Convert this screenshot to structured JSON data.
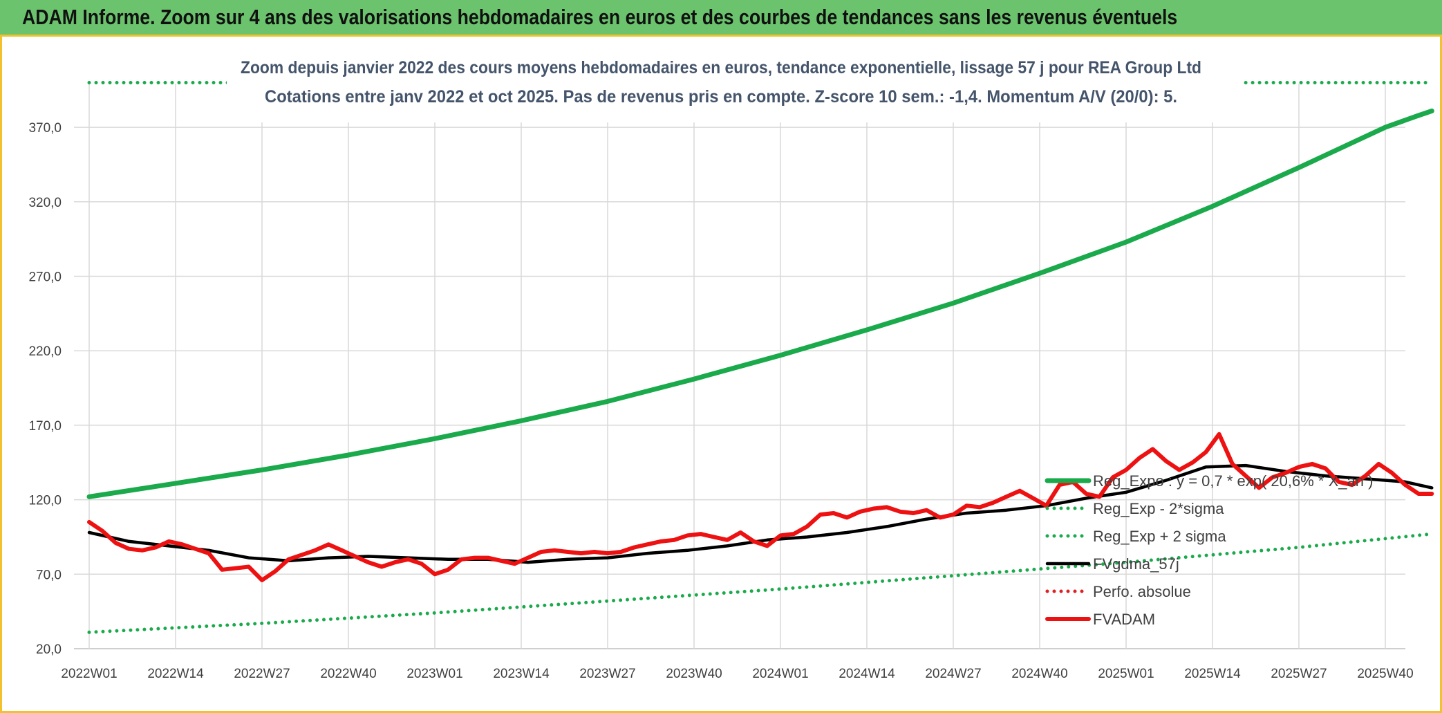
{
  "header": {
    "title": "ADAM Informe. Zoom sur 4 ans des valorisations hebdomadaires en euros et des courbes de tendances sans les revenus éventuels"
  },
  "colors": {
    "header_bg": "#6bc46d",
    "frame_border": "#f2c12e",
    "reg_expo": "#1aaa4b",
    "sigma_bands": "#1aaa4b",
    "fvgdma": "#000000",
    "perfo": "#e02020",
    "fvadam": "#ee1111"
  },
  "chart_data": {
    "type": "line",
    "title": "Zoom depuis janvier 2022 des cours moyens hebdomadaires en euros, tendance exponentielle, lissage 57 j pour REA Group Ltd",
    "subtitle": "Cotations entre janv 2022 et oct 2025. Pas de revenus pris en compte. Z-score 10 sem.: -1,4. Momentum A/V (20/0): 5.",
    "xlabel": "",
    "ylabel": "",
    "ylim": [
      20,
      380
    ],
    "grid": true,
    "legend_position": "right",
    "y_ticks": [
      "20,0",
      "70,0",
      "120,0",
      "170,0",
      "220,0",
      "270,0",
      "320,0",
      "370,0"
    ],
    "x_ticks": [
      "2022W01",
      "2022W14",
      "2022W27",
      "2022W40",
      "2023W01",
      "2023W14",
      "2023W27",
      "2023W40",
      "2024W01",
      "2024W14",
      "2024W27",
      "2024W40",
      "2025W01",
      "2025W14",
      "2025W27",
      "2025W40"
    ],
    "x_range_weeks": [
      0,
      202
    ],
    "series": [
      {
        "name": "Reg_Expo : y = 0,7 * exp( 20,6% * X_an )",
        "style": "solid-thick",
        "color": "#1aaa4b",
        "x": [
          0,
          13,
          26,
          39,
          52,
          65,
          78,
          91,
          104,
          117,
          130,
          143,
          156,
          169,
          182,
          195,
          200,
          202
        ],
        "values": [
          122,
          131,
          140,
          150,
          161,
          173,
          186,
          201,
          217,
          234,
          252,
          272,
          293,
          317,
          343,
          370,
          378,
          381
        ]
      },
      {
        "name": "Reg_Exp - 2*sigma",
        "style": "dotted",
        "color": "#1aaa4b",
        "x": [
          0,
          26,
          52,
          78,
          104,
          130,
          156,
          182,
          202
        ],
        "values": [
          31,
          37,
          44,
          52,
          60,
          69,
          78,
          88,
          97
        ]
      },
      {
        "name": "Reg_Exp + 2 sigma",
        "style": "dotted",
        "color": "#1aaa4b",
        "x": [
          0,
          23,
          155,
          174,
          202
        ],
        "values": [
          400,
          400,
          null,
          400,
          400
        ]
      },
      {
        "name": "FVgdma_57j",
        "style": "solid",
        "color": "#000000",
        "x": [
          0,
          6,
          12,
          18,
          24,
          30,
          36,
          42,
          48,
          54,
          60,
          66,
          72,
          78,
          84,
          90,
          96,
          102,
          108,
          114,
          120,
          126,
          132,
          138,
          144,
          150,
          156,
          162,
          168,
          174,
          180,
          186,
          192,
          198,
          202
        ],
        "values": [
          98,
          92,
          89,
          86,
          81,
          79,
          81,
          82,
          81,
          80,
          80,
          78,
          80,
          81,
          84,
          86,
          89,
          93,
          95,
          98,
          102,
          107,
          111,
          113,
          116,
          121,
          125,
          133,
          142,
          143,
          139,
          136,
          134,
          132,
          128
        ]
      },
      {
        "name": "Perfo. absolue",
        "style": "dotted",
        "color": "#e02020",
        "x": [],
        "values": []
      },
      {
        "name": "FVADAM",
        "style": "solid-thick",
        "color": "#ee1111",
        "x": [
          0,
          2,
          4,
          6,
          8,
          10,
          12,
          14,
          16,
          18,
          20,
          22,
          24,
          26,
          28,
          30,
          32,
          34,
          36,
          38,
          40,
          42,
          44,
          46,
          48,
          50,
          52,
          54,
          56,
          58,
          60,
          62,
          64,
          66,
          68,
          70,
          72,
          74,
          76,
          78,
          80,
          82,
          84,
          86,
          88,
          90,
          92,
          94,
          96,
          98,
          100,
          102,
          104,
          106,
          108,
          110,
          112,
          114,
          116,
          118,
          120,
          122,
          124,
          126,
          128,
          130,
          132,
          134,
          136,
          138,
          140,
          142,
          144,
          146,
          148,
          150,
          152,
          154,
          156,
          158,
          160,
          162,
          164,
          166,
          168,
          170,
          172,
          174,
          176,
          178,
          180,
          182,
          184,
          186,
          188,
          190,
          192,
          194,
          196,
          198,
          200,
          202
        ],
        "values": [
          105,
          99,
          91,
          87,
          86,
          88,
          92,
          90,
          87,
          84,
          73,
          74,
          75,
          66,
          72,
          80,
          83,
          86,
          90,
          86,
          82,
          78,
          75,
          78,
          80,
          77,
          70,
          73,
          80,
          81,
          81,
          79,
          77,
          81,
          85,
          86,
          85,
          84,
          85,
          84,
          85,
          88,
          90,
          92,
          93,
          96,
          97,
          95,
          93,
          98,
          92,
          89,
          96,
          97,
          102,
          110,
          111,
          108,
          112,
          114,
          115,
          112,
          111,
          113,
          108,
          110,
          116,
          115,
          118,
          122,
          126,
          121,
          116,
          130,
          132,
          124,
          122,
          135,
          140,
          148,
          154,
          146,
          140,
          145,
          152,
          164,
          144,
          136,
          128,
          135,
          138,
          142,
          144,
          141,
          132,
          130,
          136,
          144,
          138,
          130,
          124,
          124
        ]
      }
    ]
  }
}
